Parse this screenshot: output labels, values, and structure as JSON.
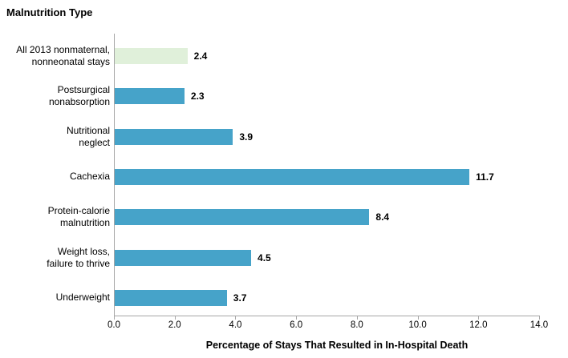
{
  "page": {
    "background": "#ffffff"
  },
  "chart_data": {
    "type": "bar",
    "orientation": "horizontal",
    "title": "Malnutrition Type",
    "xlabel": "Percentage of Stays That Resulted in In-Hospital Death",
    "xlim": [
      0,
      14
    ],
    "grid": false,
    "axis_color": "#a6a6a6",
    "bars": [
      {
        "category": "All 2013 nonmaternal,\nnonneonatal stays",
        "value": 2.4,
        "value_label": "2.4",
        "color": "#e0f0da"
      },
      {
        "category": "Postsurgical\nnonabsorption",
        "value": 2.3,
        "value_label": "2.3",
        "color": "#46a3c9"
      },
      {
        "category": "Nutritional\nneglect",
        "value": 3.9,
        "value_label": "3.9",
        "color": "#46a3c9"
      },
      {
        "category": "Cachexia",
        "value": 11.7,
        "value_label": "11.7",
        "color": "#46a3c9"
      },
      {
        "category": "Protein-calorie\nmalnutrition",
        "value": 8.4,
        "value_label": "8.4",
        "color": "#46a3c9"
      },
      {
        "category": "Weight loss,\nfailure to thrive",
        "value": 4.5,
        "value_label": "4.5",
        "color": "#46a3c9"
      },
      {
        "category": "Underweight",
        "value": 3.7,
        "value_label": "3.7",
        "color": "#46a3c9"
      }
    ],
    "x_ticks": [
      {
        "value": 0,
        "label": "0.0"
      },
      {
        "value": 2,
        "label": "2.0"
      },
      {
        "value": 4,
        "label": "4.0"
      },
      {
        "value": 6,
        "label": "6.0"
      },
      {
        "value": 8,
        "label": "8.0"
      },
      {
        "value": 10,
        "label": "10.0"
      },
      {
        "value": 12,
        "label": "12.0"
      },
      {
        "value": 14,
        "label": "14.0"
      }
    ]
  }
}
